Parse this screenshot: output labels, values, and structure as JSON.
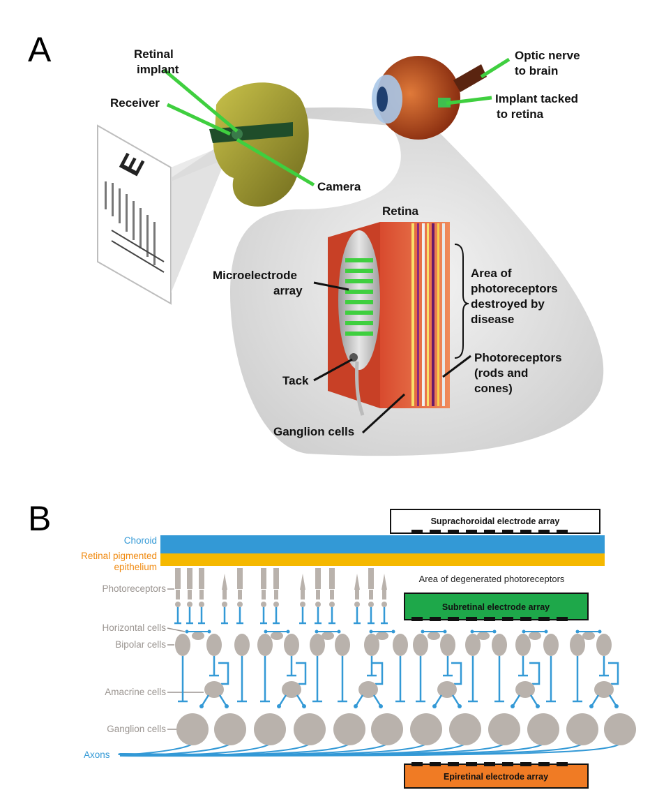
{
  "panel_a": {
    "letter": "A",
    "labels": {
      "retinal_implant": [
        "Retinal",
        "implant"
      ],
      "receiver": "Receiver",
      "camera": "Camera",
      "optic_nerve": [
        "Optic nerve",
        "to brain"
      ],
      "implant_tacked": [
        "Implant tacked",
        "to retina"
      ],
      "retina": "Retina",
      "microelectrode_array": [
        "Microelectrode",
        "array"
      ],
      "area_destroyed": [
        "Area of",
        "photoreceptors",
        "destroyed by",
        "disease"
      ],
      "photoreceptors": [
        "Photoreceptors",
        "(rods and",
        "cones)"
      ],
      "tack": "Tack",
      "ganglion_cells": "Ganglion cells"
    },
    "eye_chart_letter": "E"
  },
  "panel_b": {
    "letter": "B",
    "layers": {
      "choroid": "Choroid",
      "rpe": [
        "Retinal pigmented",
        "epithelium"
      ],
      "photoreceptors": "Photoreceptors",
      "horizontal": "Horizontal cells",
      "bipolar": "Bipolar cells",
      "amacrine": "Amacrine cells",
      "ganglion": "Ganglion cells",
      "axons": "Axons"
    },
    "arrays": {
      "suprachoroidal": "Suprachoroidal electrode array",
      "subretinal": "Subretinal electrode array",
      "epiretinal": "Epiretinal electrode array"
    },
    "degenerated_note": "Area of degenerated photoreceptors",
    "colors": {
      "choroid": "#3399d6",
      "rpe": "#f5b800",
      "cell_gray": "#b9b2ac",
      "connector_blue": "#3399d6",
      "label_gray": "#9a9490",
      "subretinal_box": "#1ea84a",
      "epiretinal_box": "#f07b24",
      "suprachoroidal_box": "#ffffff"
    }
  }
}
